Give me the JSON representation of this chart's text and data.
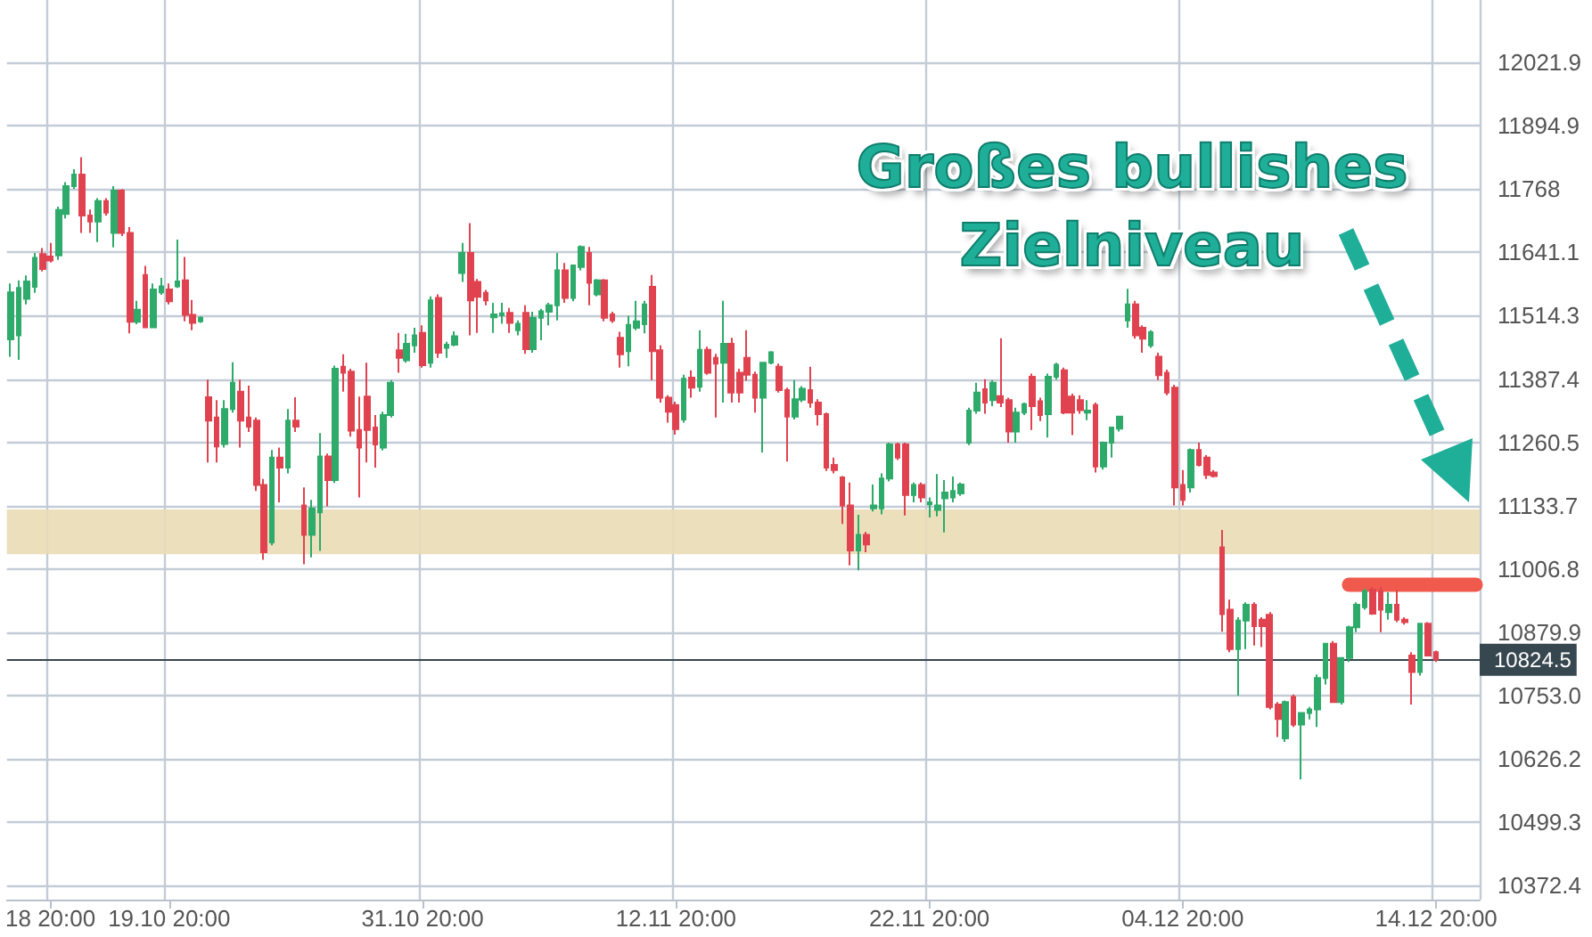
{
  "chart_data": {
    "type": "candlestick",
    "categories": [
      null,
      null,
      null,
      null,
      null,
      "18 20:00",
      null,
      null,
      null,
      null,
      null,
      null,
      null,
      null,
      null,
      null,
      null,
      null,
      null,
      null,
      "19.10 20:00",
      null,
      null,
      null,
      null,
      null,
      null,
      null,
      null,
      null,
      null,
      null,
      null,
      null,
      null,
      null,
      null,
      null,
      null,
      null,
      null,
      null,
      null,
      null,
      null,
      null,
      null,
      null,
      null,
      null,
      null,
      null,
      "31.10 20:00",
      null,
      null,
      null,
      null,
      null,
      null,
      null,
      null,
      null,
      null,
      null,
      null,
      null,
      null,
      null,
      null,
      null,
      null,
      null,
      null,
      null,
      null,
      null,
      null,
      null,
      null,
      null,
      null,
      null,
      null,
      null,
      "12.11 20:00",
      null,
      null,
      null,
      null,
      null,
      null,
      null,
      null,
      null,
      null,
      null,
      null,
      null,
      null,
      null,
      null,
      null,
      null,
      null,
      null,
      null,
      null,
      null,
      null,
      null,
      null,
      null,
      null,
      null,
      null,
      null,
      "22.11 20:00",
      null,
      null,
      null,
      null,
      null,
      null,
      null,
      null,
      null,
      null,
      null,
      null,
      null,
      null,
      null,
      null,
      null,
      null,
      null,
      null,
      null,
      null,
      null,
      null,
      null,
      null,
      null,
      null,
      null,
      null,
      null,
      "04.12 20:00",
      null,
      null,
      null,
      null,
      null,
      null,
      null,
      null,
      null,
      null,
      null,
      null,
      null,
      null,
      null,
      null,
      null,
      null,
      null,
      null,
      null,
      null,
      null,
      null,
      null,
      null,
      null,
      null,
      null,
      null,
      null,
      "14.12 20:00",
      null,
      null,
      null,
      null,
      null
    ],
    "ohlc": [
      [
        11467,
        11579,
        11432,
        11561
      ],
      [
        11475,
        11585,
        11426,
        11570
      ],
      [
        11548,
        11595,
        11537,
        11583
      ],
      [
        11572,
        11640,
        11560,
        11630
      ],
      [
        11638,
        11650,
        11603,
        11608
      ],
      [
        11633,
        11660,
        11621,
        11625
      ],
      [
        11635,
        11733,
        11626,
        11726
      ],
      [
        11718,
        11782,
        11709,
        11774
      ],
      [
        11774,
        11808,
        11768,
        11797
      ],
      [
        11797,
        11832,
        11680,
        11715
      ],
      [
        11715,
        11727,
        11680,
        11703
      ],
      [
        11703,
        11750,
        11662,
        11744
      ],
      [
        11744,
        11750,
        11715,
        11721
      ],
      [
        11680,
        11774,
        11651,
        11765
      ],
      [
        11765,
        11768,
        11674,
        11680
      ],
      [
        11680,
        11692,
        11479,
        11502
      ],
      [
        11502,
        11544,
        11497,
        11526
      ],
      [
        11596,
        11614,
        11491,
        11491
      ],
      [
        11491,
        11579,
        11491,
        11567
      ],
      [
        11561,
        11590,
        11556,
        11573
      ],
      [
        11567,
        11579,
        11537,
        11543
      ],
      [
        11573,
        11667,
        11570,
        11583
      ],
      [
        11585,
        11632,
        11503,
        11516
      ],
      [
        11516,
        11546,
        11485,
        11500
      ],
      [
        11503,
        11513,
        11500,
        11510
      ],
      [
        11351,
        11386,
        11220,
        11304
      ],
      [
        11310,
        11345,
        11220,
        11252
      ],
      [
        11257,
        11345,
        11250,
        11327
      ],
      [
        11327,
        11421,
        11320,
        11380
      ],
      [
        11362,
        11386,
        11250,
        11304
      ],
      [
        11310,
        11374,
        11281,
        11292
      ],
      [
        11304,
        11310,
        11163,
        11175
      ],
      [
        11175,
        11187,
        11025,
        11040
      ],
      [
        11060,
        11245,
        11054,
        11230
      ],
      [
        11230,
        11250,
        11140,
        11210
      ],
      [
        11210,
        11327,
        11198,
        11304
      ],
      [
        11304,
        11351,
        11281,
        11292
      ],
      [
        11134,
        11170,
        11016,
        11075
      ],
      [
        11075,
        11145,
        11030,
        11128
      ],
      [
        11120,
        11279,
        11043,
        11232
      ],
      [
        11232,
        11238,
        11132,
        11185
      ],
      [
        11185,
        11414,
        11179,
        11408
      ],
      [
        11412,
        11437,
        11362,
        11400
      ],
      [
        11402,
        11408,
        11272,
        11284
      ],
      [
        11285,
        11352,
        11150,
        11250
      ],
      [
        11352,
        11420,
        11220,
        11285
      ],
      [
        11290,
        11315,
        11210,
        11256
      ],
      [
        11250,
        11322,
        11244,
        11315
      ],
      [
        11315,
        11385,
        11310,
        11380
      ],
      [
        11445,
        11480,
        11400,
        11430
      ],
      [
        11425,
        11478,
        11420,
        11458
      ],
      [
        11455,
        11490,
        11440,
        11475
      ],
      [
        11480,
        11495,
        11410,
        11415
      ],
      [
        11420,
        11553,
        11410,
        11545
      ],
      [
        11550,
        11557,
        11430,
        11440
      ],
      [
        11450,
        11462,
        11430,
        11456
      ],
      [
        11456,
        11483,
        11453,
        11473
      ],
      [
        11600,
        11660,
        11582,
        11640
      ],
      [
        11640,
        11700,
        11475,
        11545
      ],
      [
        11582,
        11588,
        11480,
        11552
      ],
      [
        11560,
        11566,
        11535,
        11545
      ],
      [
        11511,
        11540,
        11480,
        11517
      ],
      [
        11515,
        11540,
        11498,
        11519
      ],
      [
        11520,
        11530,
        11480,
        11500
      ],
      [
        11485,
        11505,
        11475,
        11498
      ],
      [
        11520,
        11535,
        11438,
        11447
      ],
      [
        11447,
        11522,
        11440,
        11510
      ],
      [
        11510,
        11528,
        11465,
        11523
      ],
      [
        11522,
        11540,
        11495,
        11535
      ],
      [
        11535,
        11640,
        11505,
        11605
      ],
      [
        11605,
        11620,
        11540,
        11550
      ],
      [
        11550,
        11617,
        11543,
        11615
      ],
      [
        11612,
        11655,
        11605,
        11652
      ],
      [
        11640,
        11652,
        11535,
        11580
      ],
      [
        11557,
        11588,
        11553,
        11585
      ],
      [
        11585,
        11588,
        11503,
        11510
      ],
      [
        11517,
        11522,
        11500,
        11505
      ],
      [
        11470,
        11482,
        11410,
        11437
      ],
      [
        11443,
        11514,
        11413,
        11496
      ],
      [
        11490,
        11544,
        11485,
        11503
      ],
      [
        11497,
        11544,
        11479,
        11537
      ],
      [
        11572,
        11596,
        11385,
        11443
      ],
      [
        11445,
        11455,
        11340,
        11350
      ],
      [
        11350,
        11355,
        11300,
        11322
      ],
      [
        11335,
        11342,
        11276,
        11287
      ],
      [
        11306,
        11396,
        11300,
        11388
      ],
      [
        11390,
        11405,
        11350,
        11370
      ],
      [
        11372,
        11485,
        11362,
        11446
      ],
      [
        11446,
        11452,
        11396,
        11400
      ],
      [
        11430,
        11438,
        11310,
        11418
      ],
      [
        11420,
        11544,
        11340,
        11458
      ],
      [
        11458,
        11470,
        11340,
        11360
      ],
      [
        11400,
        11408,
        11340,
        11360
      ],
      [
        11430,
        11485,
        11384,
        11396
      ],
      [
        11396,
        11402,
        11320,
        11350
      ],
      [
        11350,
        11420,
        11240,
        11420
      ],
      [
        11420,
        11443,
        11417,
        11441
      ],
      [
        11412,
        11418,
        11360,
        11365
      ],
      [
        11365,
        11370,
        11222,
        11312
      ],
      [
        11312,
        11385,
        11306,
        11347
      ],
      [
        11346,
        11373,
        11341,
        11368
      ],
      [
        11365,
        11412,
        11330,
        11340
      ],
      [
        11340,
        11347,
        11294,
        11317
      ],
      [
        11317,
        11320,
        11203,
        11210
      ],
      [
        11215,
        11230,
        11198,
        11205
      ],
      [
        11190,
        11193,
        11097,
        11134
      ],
      [
        11134,
        11180,
        11014,
        11044
      ],
      [
        11044,
        11115,
        11004,
        11075
      ],
      [
        11075,
        11081,
        11040,
        11056
      ],
      [
        11128,
        11176,
        11122,
        11134
      ],
      [
        11128,
        11198,
        11116,
        11188
      ],
      [
        11188,
        11260,
        11182,
        11256
      ],
      [
        11256,
        11260,
        11225,
        11230
      ],
      [
        11256,
        11260,
        11114,
        11155
      ],
      [
        11155,
        11180,
        11140,
        11175
      ],
      [
        11175,
        11180,
        11140,
        11150
      ],
      [
        11136,
        11150,
        11110,
        11140
      ],
      [
        11125,
        11197,
        11112,
        11134
      ],
      [
        11148,
        11185,
        11080,
        11160
      ],
      [
        11150,
        11192,
        11140,
        11163
      ],
      [
        11158,
        11180,
        11153,
        11176
      ],
      [
        11260,
        11330,
        11255,
        11324
      ],
      [
        11324,
        11380,
        11318,
        11360
      ],
      [
        11367,
        11387,
        11318,
        11340
      ],
      [
        11345,
        11385,
        11333,
        11380
      ],
      [
        11353,
        11469,
        11331,
        11340
      ],
      [
        11345,
        11350,
        11260,
        11282
      ],
      [
        11282,
        11330,
        11260,
        11320
      ],
      [
        11320,
        11340,
        11315,
        11337
      ],
      [
        11392,
        11398,
        11285,
        11333
      ],
      [
        11343,
        11350,
        11303,
        11315
      ],
      [
        11317,
        11398,
        11270,
        11392
      ],
      [
        11392,
        11420,
        11386,
        11416
      ],
      [
        11405,
        11410,
        11317,
        11320
      ],
      [
        11352,
        11358,
        11275,
        11320
      ],
      [
        11345,
        11355,
        11318,
        11325
      ],
      [
        11320,
        11345,
        11305,
        11324
      ],
      [
        11335,
        11340,
        11200,
        11212
      ],
      [
        11212,
        11262,
        11206,
        11260
      ],
      [
        11260,
        11290,
        11230,
        11290
      ],
      [
        11288,
        11313,
        11282,
        11312
      ],
      [
        11505,
        11568,
        11490,
        11537
      ],
      [
        11537,
        11544,
        11468,
        11475
      ],
      [
        11490,
        11495,
        11440,
        11468
      ],
      [
        11455,
        11485,
        11450,
        11481
      ],
      [
        11432,
        11440,
        11385,
        11395
      ],
      [
        11400,
        11406,
        11355,
        11360
      ],
      [
        11370,
        11376,
        11134,
        11170
      ],
      [
        11175,
        11205,
        11134,
        11145
      ],
      [
        11170,
        11248,
        11160,
        11245
      ],
      [
        11245,
        11260,
        11212,
        11215
      ],
      [
        11230,
        11235,
        11187,
        11195
      ],
      [
        11200,
        11205,
        11190,
        11193
      ],
      [
        11050,
        11085,
        10881,
        10916
      ],
      [
        10925,
        10945,
        10840,
        10846
      ],
      [
        10846,
        10910,
        10753,
        10903
      ],
      [
        10903,
        10940,
        10846,
        10935
      ],
      [
        10935,
        10940,
        10853,
        10892
      ],
      [
        10905,
        10910,
        10850,
        10892
      ],
      [
        10915,
        10920,
        10725,
        10730
      ],
      [
        10735,
        10740,
        10670,
        10706
      ],
      [
        10667,
        10743,
        10660,
        10740
      ],
      [
        10750,
        10755,
        10690,
        10695
      ],
      [
        10695,
        10718,
        10585,
        10718
      ],
      [
        10718,
        10730,
        10705,
        10725
      ],
      [
        10725,
        10795,
        10690,
        10788
      ],
      [
        10788,
        10858,
        10775,
        10857
      ],
      [
        10857,
        10862,
        10738,
        10740
      ],
      [
        10740,
        10830,
        10735,
        10828
      ],
      [
        10828,
        10893,
        10820,
        10890
      ],
      [
        10890,
        10940,
        10880,
        10935
      ],
      [
        10930,
        10967,
        10925,
        10962
      ],
      [
        10965,
        10970,
        10915,
        10917
      ],
      [
        10962,
        10970,
        10880,
        10925
      ],
      [
        10920,
        10960,
        10905,
        10935
      ],
      [
        10935,
        10965,
        10900,
        10905
      ],
      [
        10905,
        10910,
        10895,
        10900
      ],
      [
        10833,
        10840,
        10735,
        10800
      ],
      [
        10800,
        10898,
        10793,
        10897
      ],
      [
        10897,
        10900,
        10833,
        10833
      ],
      [
        10840,
        10843,
        10820,
        10825
      ],
      null,
      null,
      null,
      null,
      null
    ],
    "series": [
      {
        "type": "line",
        "color": "#ef5a4c",
        "values": [
          null,
          null,
          null,
          null,
          null,
          null,
          null,
          null,
          null,
          null,
          null,
          null,
          null,
          null,
          null,
          null,
          null,
          null,
          null,
          null,
          null,
          null,
          null,
          null,
          null,
          null,
          null,
          null,
          null,
          null,
          null,
          null,
          null,
          null,
          null,
          null,
          null,
          null,
          null,
          null,
          null,
          null,
          null,
          null,
          null,
          null,
          null,
          null,
          null,
          null,
          null,
          null,
          null,
          null,
          null,
          null,
          null,
          null,
          null,
          null,
          null,
          null,
          null,
          null,
          null,
          null,
          null,
          null,
          null,
          null,
          null,
          null,
          null,
          null,
          null,
          null,
          null,
          null,
          null,
          null,
          null,
          null,
          null,
          null,
          null,
          null,
          null,
          null,
          null,
          null,
          null,
          null,
          null,
          null,
          null,
          null,
          null,
          null,
          null,
          null,
          null,
          null,
          null,
          null,
          null,
          null,
          null,
          null,
          null,
          null,
          null,
          null,
          null,
          null,
          null,
          null,
          null,
          null,
          null,
          null,
          null,
          null,
          null,
          null,
          null,
          null,
          null,
          null,
          null,
          null,
          null,
          null,
          null,
          null,
          null,
          null,
          null,
          null,
          null,
          null,
          null,
          null,
          null,
          null,
          null,
          null,
          null,
          null,
          null,
          null,
          null,
          null,
          null,
          null,
          null,
          null,
          null,
          null,
          null,
          null,
          null,
          null,
          null,
          null,
          null,
          null,
          null,
          null,
          null,
          10975,
          10975,
          10975,
          10975,
          10975,
          10975,
          10975,
          10975,
          10975,
          10975,
          10975,
          10975,
          10975,
          10975,
          10975,
          10975,
          10975
        ]
      }
    ],
    "ylim": [
      10344,
      12147
    ],
    "yticks": [
      10372.4,
      10499.3,
      10626.2,
      {
        "value": 10753,
        "label": "10753.0"
      },
      10879.9,
      11006.8,
      11133.7,
      11260.5,
      11387.4,
      11514.3,
      11641.1,
      11768,
      {
        "value": 11894.9,
        "label": "11894.9"
      },
      12021.9
    ],
    "grid": true,
    "ref_lines": [
      {
        "axis": "y",
        "value": 10824.5,
        "label": "10824.5",
        "color": "#37474f"
      }
    ],
    "bands": [
      {
        "axis": "y",
        "from": 11036,
        "to": 11126,
        "color": "#eadcb5"
      }
    ],
    "annotations": [
      "Großes bullishes Zielniveau"
    ]
  }
}
